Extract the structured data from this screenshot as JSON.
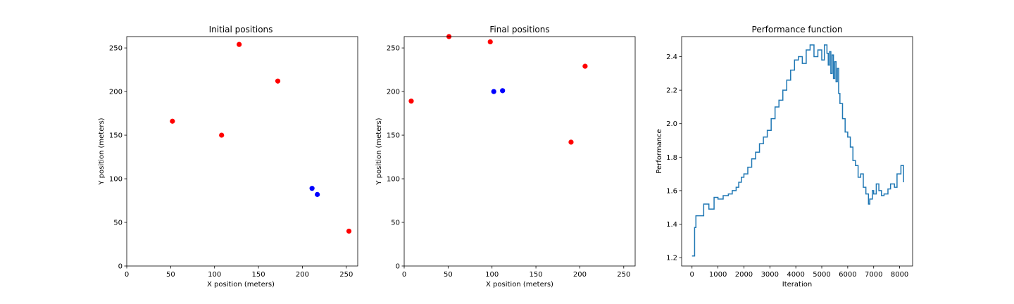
{
  "chart_data": [
    {
      "type": "scatter",
      "title": "Initial positions",
      "xlabel": "X position (meters)",
      "ylabel": "Y position (meters)",
      "xlim": [
        0,
        263
      ],
      "ylim": [
        0,
        263
      ],
      "xticks": [
        0,
        50,
        100,
        150,
        200,
        250
      ],
      "yticks": [
        0,
        50,
        100,
        150,
        200,
        250
      ],
      "grid": false,
      "colors": {
        "red": "#ff0000",
        "blue": "#0000ff"
      },
      "points": [
        {
          "x": 128,
          "y": 254,
          "color": "red"
        },
        {
          "x": 172,
          "y": 212,
          "color": "red"
        },
        {
          "x": 52,
          "y": 166,
          "color": "red"
        },
        {
          "x": 108,
          "y": 150,
          "color": "red"
        },
        {
          "x": 253,
          "y": 40,
          "color": "red"
        },
        {
          "x": 211,
          "y": 89,
          "color": "blue"
        },
        {
          "x": 217,
          "y": 82,
          "color": "blue"
        }
      ]
    },
    {
      "type": "scatter",
      "title": "Final positions",
      "xlabel": "X position (meters)",
      "ylabel": "Y position (meters)",
      "xlim": [
        0,
        263
      ],
      "ylim": [
        0,
        263
      ],
      "xticks": [
        0,
        50,
        100,
        150,
        200,
        250
      ],
      "yticks": [
        0,
        50,
        100,
        150,
        200,
        250
      ],
      "grid": false,
      "colors": {
        "red": "#ff0000",
        "blue": "#0000ff"
      },
      "points": [
        {
          "x": 51,
          "y": 263,
          "color": "red"
        },
        {
          "x": 98,
          "y": 257,
          "color": "red"
        },
        {
          "x": 206,
          "y": 229,
          "color": "red"
        },
        {
          "x": 8,
          "y": 189,
          "color": "red"
        },
        {
          "x": 190,
          "y": 142,
          "color": "red"
        },
        {
          "x": 102,
          "y": 200,
          "color": "blue"
        },
        {
          "x": 112,
          "y": 201,
          "color": "blue"
        }
      ]
    },
    {
      "type": "line",
      "title": "Performance function",
      "xlabel": "Iteration",
      "ylabel": "Performance",
      "xlim": [
        -400,
        8500
      ],
      "ylim": [
        1.15,
        2.52
      ],
      "xticks": [
        0,
        1000,
        2000,
        3000,
        4000,
        5000,
        6000,
        7000,
        8000
      ],
      "yticks": [
        1.2,
        1.4,
        1.6,
        1.8,
        2.0,
        2.2,
        2.4
      ],
      "ytick_labels": [
        "1.2",
        "1.4",
        "1.6",
        "1.8",
        "2.0",
        "2.2",
        "2.4"
      ],
      "grid": false,
      "line_style": "step",
      "colors": {
        "line": "#1f77b4"
      },
      "x": [
        0,
        100,
        150,
        300,
        450,
        650,
        850,
        1000,
        1200,
        1400,
        1550,
        1700,
        1800,
        1900,
        2000,
        2150,
        2300,
        2450,
        2600,
        2750,
        2900,
        3050,
        3200,
        3350,
        3500,
        3650,
        3800,
        3950,
        4100,
        4250,
        4400,
        4550,
        4700,
        4850,
        5000,
        5100,
        5200,
        5250,
        5300,
        5350,
        5400,
        5450,
        5500,
        5550,
        5600,
        5650,
        5700,
        5800,
        5900,
        6000,
        6100,
        6200,
        6300,
        6400,
        6500,
        6600,
        6700,
        6800,
        6850,
        6950,
        7000,
        7100,
        7200,
        7300,
        7400,
        7550,
        7650,
        7800,
        7900,
        8050,
        8150
      ],
      "y": [
        1.21,
        1.38,
        1.45,
        1.45,
        1.52,
        1.49,
        1.56,
        1.55,
        1.57,
        1.58,
        1.6,
        1.62,
        1.65,
        1.68,
        1.7,
        1.74,
        1.79,
        1.83,
        1.88,
        1.92,
        1.96,
        2.03,
        2.1,
        2.14,
        2.2,
        2.26,
        2.32,
        2.38,
        2.4,
        2.36,
        2.44,
        2.47,
        2.4,
        2.44,
        2.38,
        2.47,
        2.42,
        2.35,
        2.43,
        2.3,
        2.41,
        2.27,
        2.37,
        2.25,
        2.33,
        2.18,
        2.12,
        2.03,
        1.95,
        1.92,
        1.86,
        1.78,
        1.75,
        1.68,
        1.7,
        1.62,
        1.58,
        1.52,
        1.55,
        1.6,
        1.58,
        1.64,
        1.6,
        1.57,
        1.58,
        1.61,
        1.64,
        1.62,
        1.7,
        1.75,
        1.65
      ]
    }
  ]
}
